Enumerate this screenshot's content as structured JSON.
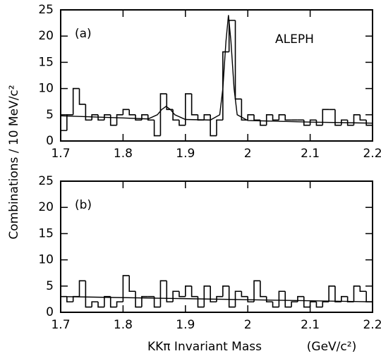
{
  "chart_data": [
    {
      "type": "histogram",
      "panel": "(a)",
      "annotation": "ALEPH",
      "ylabel": "Combinations / 10 MeV/c²",
      "bins": [
        1.7,
        1.71,
        1.72,
        1.73,
        1.74,
        1.75,
        1.76,
        1.77,
        1.78,
        1.79,
        1.8,
        1.81,
        1.82,
        1.83,
        1.84,
        1.85,
        1.86,
        1.87,
        1.88,
        1.89,
        1.9,
        1.91,
        1.92,
        1.93,
        1.94,
        1.95,
        1.96,
        1.97,
        1.98,
        1.99,
        2.0,
        2.01,
        2.02,
        2.03,
        2.04,
        2.05,
        2.06,
        2.07,
        2.08,
        2.09,
        2.1,
        2.11,
        2.12,
        2.13,
        2.14,
        2.15,
        2.16,
        2.17,
        2.18,
        2.19,
        2.2
      ],
      "values": [
        2,
        5,
        10,
        7,
        4,
        5,
        4,
        5,
        3,
        5,
        6,
        5,
        4,
        5,
        4,
        1,
        9,
        6,
        4,
        3,
        9,
        5,
        4,
        5,
        1,
        4,
        17,
        23,
        8,
        4,
        5,
        4,
        3,
        5,
        4,
        5,
        4,
        4,
        4,
        3,
        4,
        3,
        6,
        6,
        3,
        4,
        3,
        5,
        4,
        3
      ],
      "fit": {
        "x": [
          1.7,
          1.75,
          1.8,
          1.84,
          1.855,
          1.862,
          1.869,
          1.876,
          1.883,
          1.9,
          1.94,
          1.955,
          1.96,
          1.965,
          1.969,
          1.973,
          1.978,
          1.983,
          2.0,
          2.1,
          2.2
        ],
        "y": [
          4.8,
          4.6,
          4.4,
          4.2,
          5.0,
          6.0,
          6.6,
          6.0,
          5.0,
          4.1,
          4.0,
          5.0,
          10,
          19,
          24,
          19,
          10,
          5,
          3.9,
          3.6,
          3.4
        ]
      },
      "xlim": [
        1.7,
        2.2
      ],
      "xticks": [
        1.7,
        1.8,
        1.9,
        2,
        2.1,
        2.2
      ],
      "ylim": [
        0,
        25
      ],
      "yticks": [
        0,
        5,
        10,
        15,
        20,
        25
      ]
    },
    {
      "type": "histogram",
      "panel": "(b)",
      "xlabel": "KKπ Invariant Mass",
      "xunit": "(GeV/c²)",
      "bins": [
        1.7,
        1.71,
        1.72,
        1.73,
        1.74,
        1.75,
        1.76,
        1.77,
        1.78,
        1.79,
        1.8,
        1.81,
        1.82,
        1.83,
        1.84,
        1.85,
        1.86,
        1.87,
        1.88,
        1.89,
        1.9,
        1.91,
        1.92,
        1.93,
        1.94,
        1.95,
        1.96,
        1.97,
        1.98,
        1.99,
        2.0,
        2.01,
        2.02,
        2.03,
        2.04,
        2.05,
        2.06,
        2.07,
        2.08,
        2.09,
        2.1,
        2.11,
        2.12,
        2.13,
        2.14,
        2.15,
        2.16,
        2.17,
        2.18,
        2.19,
        2.2
      ],
      "values": [
        3,
        2,
        3,
        6,
        1,
        2,
        1,
        3,
        1,
        2,
        7,
        4,
        1,
        3,
        3,
        1,
        6,
        2,
        4,
        3,
        5,
        3,
        1,
        5,
        2,
        3,
        5,
        1,
        4,
        3,
        2,
        6,
        3,
        2,
        1,
        4,
        1,
        2,
        3,
        1,
        2,
        1,
        2,
        5,
        2,
        3,
        2,
        5,
        4,
        2
      ],
      "fit": {
        "x": [
          1.7,
          2.2
        ],
        "y": [
          3.0,
          2.0
        ]
      },
      "xlim": [
        1.7,
        2.2
      ],
      "xticks": [
        1.7,
        1.8,
        1.9,
        2,
        2.1,
        2.2
      ],
      "ylim": [
        0,
        25
      ],
      "yticks": [
        0,
        5,
        10,
        15,
        20,
        25
      ]
    }
  ]
}
